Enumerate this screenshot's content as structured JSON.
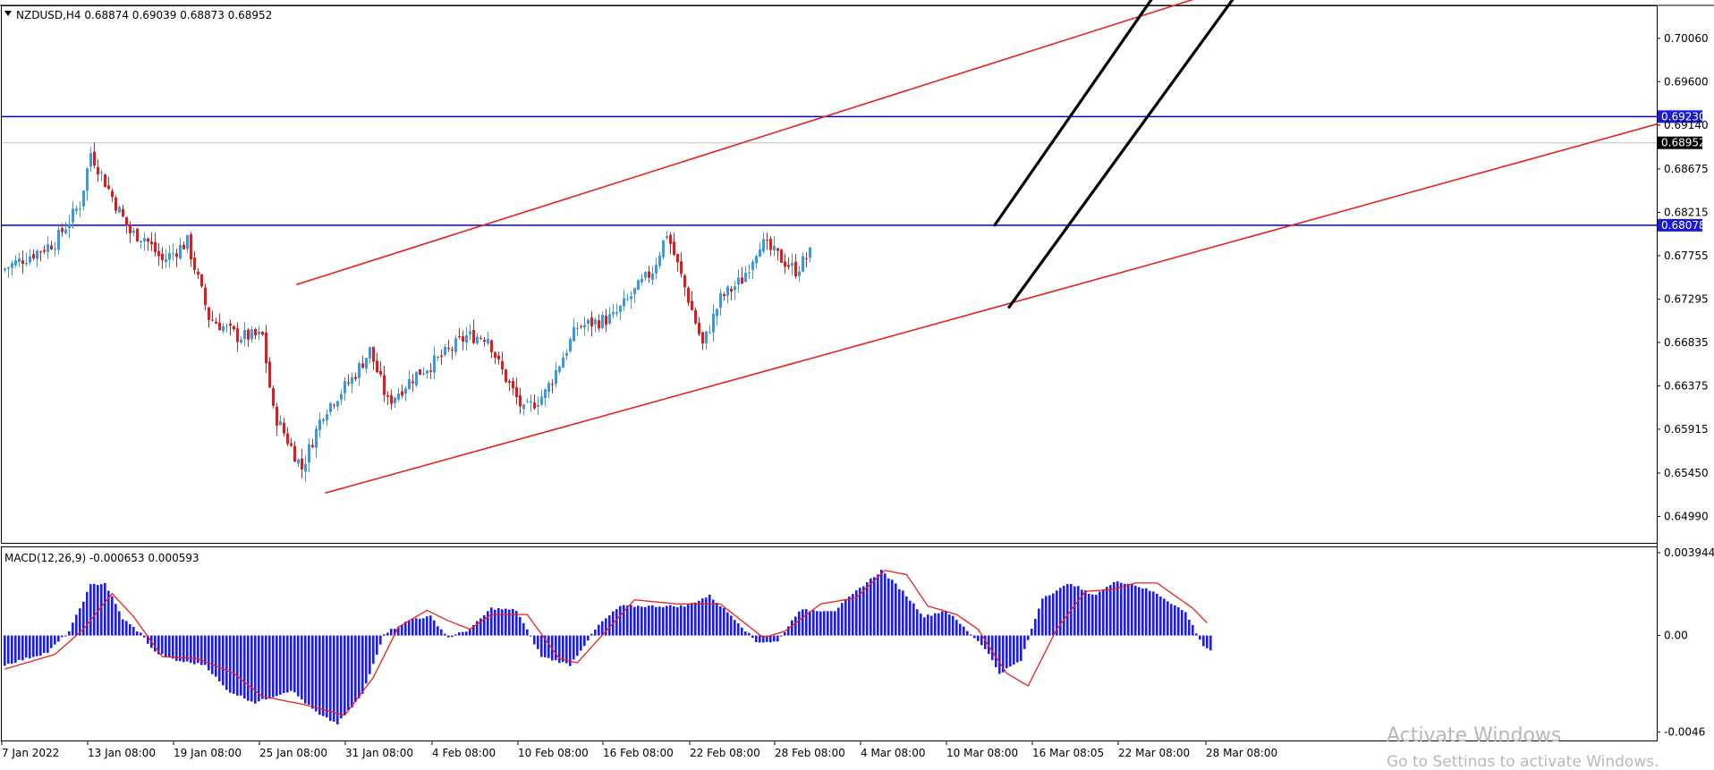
{
  "header": {
    "symbol_line": "NZDUSD,H4  0.68874 0.69039 0.68873 0.68952",
    "macd_line": "MACD(12,26,9) -0.000653 0.000593"
  },
  "watermark": {
    "line1": "Activate Windows",
    "line2": "Go to Settings to activate Windows."
  },
  "colors": {
    "bull": "#3c9ad6",
    "bear": "#d42020",
    "trendline": "#e82020",
    "channel": "#000000",
    "hline": "#0000d8",
    "histogram": "#1f1fd6",
    "signal": "#e82020",
    "price_label_bg": "#000000",
    "hline_label_bg": "#1a1ad6"
  },
  "chart_data": [
    {
      "type": "candlestick",
      "symbol": "NZDUSD",
      "timeframe": "H4",
      "ohlc_latest": {
        "open": 0.68874,
        "high": 0.69039,
        "low": 0.68873,
        "close": 0.68952
      },
      "y_ticks": [
        "0.70060",
        "0.69600",
        "0.69140",
        "0.68675",
        "0.68215",
        "0.67755",
        "0.67295",
        "0.66835",
        "0.66375",
        "0.65915",
        "0.65450",
        "0.64990"
      ],
      "ylim": [
        0.6471,
        0.704
      ],
      "x_ticks": [
        "7 Jan 2022",
        "13 Jan 08:00",
        "19 Jan 08:00",
        "25 Jan 08:00",
        "31 Jan 08:00",
        "4 Feb 08:00",
        "10 Feb 08:00",
        "16 Feb 08:00",
        "22 Feb 08:00",
        "28 Feb 08:00",
        "4 Mar 08:00",
        "10 Mar 08:00",
        "16 Mar 08:05",
        "22 Mar 08:00",
        "28 Mar 08:00"
      ],
      "bar_count": 226,
      "price_path": [
        [
          0,
          0.676
        ],
        [
          15,
          0.679
        ],
        [
          22,
          0.683
        ],
        [
          25,
          0.6885
        ],
        [
          32,
          0.683
        ],
        [
          36,
          0.68
        ],
        [
          40,
          0.6795
        ],
        [
          45,
          0.677
        ],
        [
          52,
          0.679
        ],
        [
          58,
          0.671
        ],
        [
          66,
          0.669
        ],
        [
          73,
          0.669
        ],
        [
          76,
          0.661
        ],
        [
          84,
          0.655
        ],
        [
          90,
          0.661
        ],
        [
          98,
          0.6645
        ],
        [
          103,
          0.6675
        ],
        [
          108,
          0.662
        ],
        [
          116,
          0.665
        ],
        [
          122,
          0.6665
        ],
        [
          130,
          0.669
        ],
        [
          136,
          0.669
        ],
        [
          139,
          0.666
        ],
        [
          146,
          0.661
        ],
        [
          152,
          0.663
        ],
        [
          161,
          0.67
        ],
        [
          171,
          0.671
        ],
        [
          182,
          0.676
        ],
        [
          186,
          0.68
        ],
        [
          192,
          0.673
        ],
        [
          196,
          0.668
        ],
        [
          201,
          0.673
        ],
        [
          207,
          0.675
        ],
        [
          212,
          0.679
        ],
        [
          222,
          0.676
        ],
        [
          231,
          0.68
        ],
        [
          235,
          0.691
        ],
        [
          240,
          0.684
        ],
        [
          247,
          0.681
        ],
        [
          252,
          0.682
        ],
        [
          258,
          0.685
        ],
        [
          263,
          0.683
        ],
        [
          268,
          0.681
        ],
        [
          273,
          0.676
        ],
        [
          277,
          0.674
        ],
        [
          282,
          0.679
        ],
        [
          289,
          0.686
        ],
        [
          297,
          0.69
        ],
        [
          304,
          0.688
        ],
        [
          311,
          0.696
        ],
        [
          320,
          0.696
        ],
        [
          328,
          0.697
        ],
        [
          334,
          0.695
        ],
        [
          337,
          0.692
        ],
        [
          341,
          0.6895
        ]
      ],
      "horizontal_levels": [
        {
          "price": 0.6923,
          "label": "0.69230"
        },
        {
          "price": 0.68078,
          "label": "0.68078"
        }
      ],
      "current_price": {
        "price": 0.68952,
        "label": "0.68952"
      },
      "trendlines": [
        {
          "name": "upper-channel-line",
          "color": "red",
          "from": [
            82,
            0.6745
          ],
          "to": [
            377,
            0.7101
          ]
        },
        {
          "name": "lower-channel-line",
          "color": "red",
          "from": [
            90,
            0.6524
          ],
          "to": [
            462,
            0.6915
          ]
        },
        {
          "name": "steep-channel-upper",
          "color": "black",
          "from": [
            277,
            0.6808
          ],
          "to": [
            331,
            0.7103
          ]
        },
        {
          "name": "steep-channel-lower",
          "color": "black",
          "from": [
            281,
            0.6721
          ],
          "to": [
            354,
            0.7102
          ]
        }
      ]
    },
    {
      "type": "bar+line",
      "name": "MACD(12,26,9)",
      "main_value": -0.000653,
      "signal_value": 0.000593,
      "y_ticks": [
        "0.003944",
        "0.00",
        "-0.0046"
      ],
      "ylim": [
        -0.005,
        0.0042
      ],
      "macd_path": [
        [
          0,
          -0.0014
        ],
        [
          12,
          -0.0008
        ],
        [
          18,
          0.0002
        ],
        [
          24,
          0.0024
        ],
        [
          28,
          0.0025
        ],
        [
          33,
          0.0008
        ],
        [
          38,
          0.0001
        ],
        [
          42,
          -0.0008
        ],
        [
          48,
          -0.0012
        ],
        [
          56,
          -0.0014
        ],
        [
          62,
          -0.0026
        ],
        [
          70,
          -0.0032
        ],
        [
          80,
          -0.0026
        ],
        [
          88,
          -0.0038
        ],
        [
          93,
          -0.0042
        ],
        [
          100,
          -0.0028
        ],
        [
          106,
          0.0001
        ],
        [
          114,
          0.0008
        ],
        [
          119,
          0.0009
        ],
        [
          124,
          -0.0001
        ],
        [
          130,
          0.0003
        ],
        [
          136,
          0.0013
        ],
        [
          143,
          0.0012
        ],
        [
          150,
          -0.001
        ],
        [
          158,
          -0.0014
        ],
        [
          166,
          0.0005
        ],
        [
          172,
          0.0014
        ],
        [
          180,
          0.0014
        ],
        [
          190,
          0.0014
        ],
        [
          197,
          0.0019
        ],
        [
          204,
          0.0008
        ],
        [
          210,
          -0.0003
        ],
        [
          216,
          -0.0003
        ],
        [
          222,
          0.0012
        ],
        [
          232,
          0.0012
        ],
        [
          240,
          0.0024
        ],
        [
          245,
          0.0031
        ],
        [
          251,
          0.0021
        ],
        [
          257,
          0.0009
        ],
        [
          263,
          0.0012
        ],
        [
          268,
          0.0004
        ],
        [
          274,
          -0.0006
        ],
        [
          278,
          -0.0018
        ],
        [
          284,
          -0.0012
        ],
        [
          290,
          0.0018
        ],
        [
          298,
          0.0025
        ],
        [
          304,
          0.0019
        ],
        [
          311,
          0.0026
        ],
        [
          316,
          0.0024
        ],
        [
          322,
          0.002
        ],
        [
          330,
          0.0011
        ],
        [
          335,
          -0.0005
        ],
        [
          337,
          -0.0007
        ]
      ],
      "signal_path": [
        [
          0,
          -0.0016
        ],
        [
          14,
          -0.0009
        ],
        [
          22,
          0.0003
        ],
        [
          30,
          0.002
        ],
        [
          36,
          0.0009
        ],
        [
          44,
          -0.001
        ],
        [
          54,
          -0.0011
        ],
        [
          64,
          -0.0018
        ],
        [
          72,
          -0.0029
        ],
        [
          84,
          -0.0033
        ],
        [
          95,
          -0.0038
        ],
        [
          103,
          -0.002
        ],
        [
          110,
          0.0004
        ],
        [
          118,
          0.0012
        ],
        [
          124,
          0.0007
        ],
        [
          130,
          0.0003
        ],
        [
          136,
          0.001
        ],
        [
          146,
          0.001
        ],
        [
          155,
          -0.0011
        ],
        [
          160,
          -0.0013
        ],
        [
          168,
          0.0002
        ],
        [
          176,
          0.0017
        ],
        [
          188,
          0.0015
        ],
        [
          200,
          0.0015
        ],
        [
          206,
          0.0007
        ],
        [
          212,
          -0.0001
        ],
        [
          218,
          0.0002
        ],
        [
          228,
          0.0015
        ],
        [
          238,
          0.0018
        ],
        [
          246,
          0.0031
        ],
        [
          252,
          0.0029
        ],
        [
          258,
          0.0014
        ],
        [
          266,
          0.001
        ],
        [
          272,
          0.0003
        ],
        [
          280,
          -0.0018
        ],
        [
          286,
          -0.0024
        ],
        [
          294,
          0.0003
        ],
        [
          302,
          0.0021
        ],
        [
          310,
          0.0022
        ],
        [
          316,
          0.0025
        ],
        [
          322,
          0.0025
        ],
        [
          332,
          0.0013
        ],
        [
          336,
          0.0006
        ]
      ]
    }
  ]
}
